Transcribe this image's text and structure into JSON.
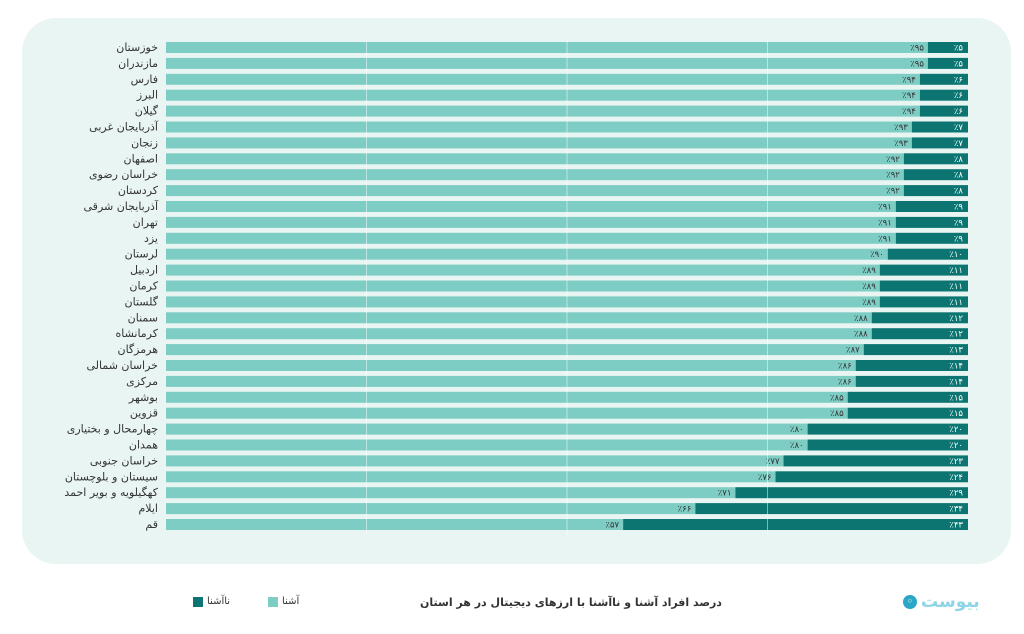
{
  "chart_data": {
    "type": "bar",
    "orientation": "horizontal",
    "stacked": true,
    "title": "درصد افراد آشنا و ناآشنا با ارزهای دیجیتال در هر استان",
    "legend": {
      "position": "bottom-left",
      "aware_label": "آشنا",
      "unaware_label": "ناآشنا"
    },
    "xlim": [
      0,
      100
    ],
    "grid": true,
    "categories": [
      "خوزستان",
      "مازندران",
      "فارس",
      "البرز",
      "گیلان",
      "آذربایجان غربی",
      "زنجان",
      "اصفهان",
      "خراسان رضوی",
      "کردستان",
      "آذربایجان شرقی",
      "تهران",
      "یزد",
      "لرستان",
      "اردبیل",
      "کرمان",
      "گلستان",
      "سمنان",
      "کرمانشاه",
      "هرمزگان",
      "خراسان شمالی",
      "مرکزی",
      "بوشهر",
      "قزوین",
      "چهارمحال و بختیاری",
      "همدان",
      "خراسان جنوبی",
      "سیستان و بلوچستان",
      "کهگیلویه و بویر احمد",
      "ایلام",
      "قم"
    ],
    "series": [
      {
        "name": "آشنا",
        "color": "#7ecdc4",
        "values": [
          95,
          95,
          94,
          94,
          94,
          93,
          93,
          92,
          92,
          92,
          91,
          91,
          91,
          90,
          89,
          89,
          89,
          88,
          88,
          87,
          86,
          86,
          85,
          85,
          80,
          80,
          77,
          76,
          71,
          66,
          57
        ],
        "labels": [
          "٪۹۵",
          "٪۹۵",
          "٪۹۴",
          "٪۹۴",
          "٪۹۴",
          "٪۹۳",
          "٪۹۳",
          "٪۹۲",
          "٪۹۲",
          "٪۹۲",
          "٪۹۱",
          "٪۹۱",
          "٪۹۱",
          "٪۹۰",
          "٪۸۹",
          "٪۸۹",
          "٪۸۹",
          "٪۸۸",
          "٪۸۸",
          "٪۸۷",
          "٪۸۶",
          "٪۸۶",
          "٪۸۵",
          "٪۸۵",
          "٪۸۰",
          "٪۸۰",
          "٪۷۷",
          "٪۷۶",
          "٪۷۱",
          "٪۶۶",
          "٪۵۷"
        ]
      },
      {
        "name": "ناآشنا",
        "color": "#0c7571",
        "values": [
          5,
          5,
          6,
          6,
          6,
          7,
          7,
          8,
          8,
          8,
          9,
          9,
          9,
          10,
          11,
          11,
          11,
          12,
          12,
          13,
          14,
          14,
          15,
          15,
          20,
          20,
          23,
          24,
          29,
          34,
          43
        ],
        "labels": [
          "٪۵",
          "٪۵",
          "٪۶",
          "٪۶",
          "٪۶",
          "٪۷",
          "٪۷",
          "٪۸",
          "٪۸",
          "٪۸",
          "٪۹",
          "٪۹",
          "٪۹",
          "٪۱۰",
          "٪۱۱",
          "٪۱۱",
          "٪۱۱",
          "٪۱۲",
          "٪۱۲",
          "٪۱۳",
          "٪۱۴",
          "٪۱۴",
          "٪۱۵",
          "٪۱۵",
          "٪۲۰",
          "٪۲۰",
          "٪۲۳",
          "٪۲۴",
          "٪۲۹",
          "٪۳۴",
          "٪۴۳"
        ]
      }
    ]
  },
  "brand": {
    "logo_text": "بیوست"
  }
}
